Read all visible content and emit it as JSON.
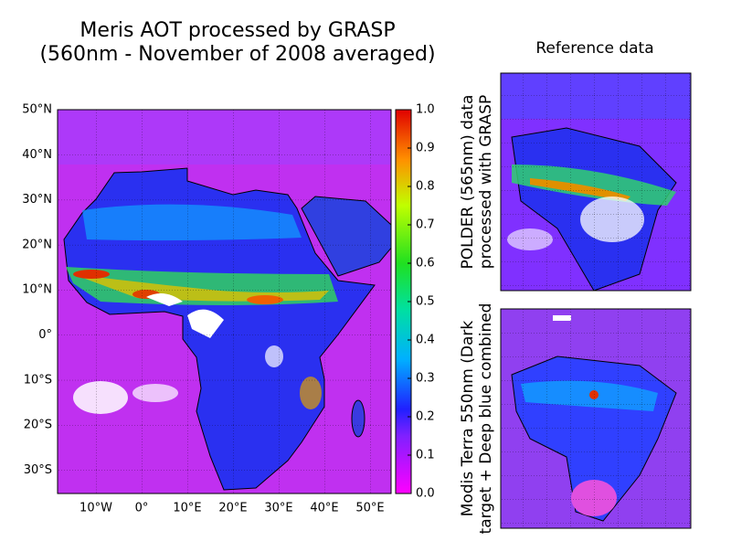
{
  "main_map": {
    "title": [
      "Meris AOT processed by GRASP",
      "(560nm - November of 2008 averaged)"
    ],
    "lat_ticks": [
      "50°N",
      "40°N",
      "30°N",
      "20°N",
      "10°N",
      "0°",
      "10°S",
      "20°S",
      "30°S"
    ],
    "lon_ticks": [
      "10°W",
      "0°",
      "10°E",
      "20°E",
      "30°E",
      "40°E",
      "50°E"
    ]
  },
  "colorbar": {
    "range": [
      0,
      1
    ],
    "ticks": [
      {
        "value": 1,
        "label": "1.0"
      },
      0.9,
      0.8,
      0.7,
      0.6,
      0.5,
      0.4,
      0.3,
      0.2,
      0.1,
      {
        "value": 0,
        "label": "0.0"
      }
    ]
  },
  "reference": {
    "title": "Reference data",
    "panels": [
      {
        "label": [
          "POLDER (565nm) data",
          "processed with GRASP"
        ]
      },
      {
        "label": [
          "Modis Terra 550nm (Dark",
          "target + Deep blue combined"
        ]
      }
    ]
  }
}
